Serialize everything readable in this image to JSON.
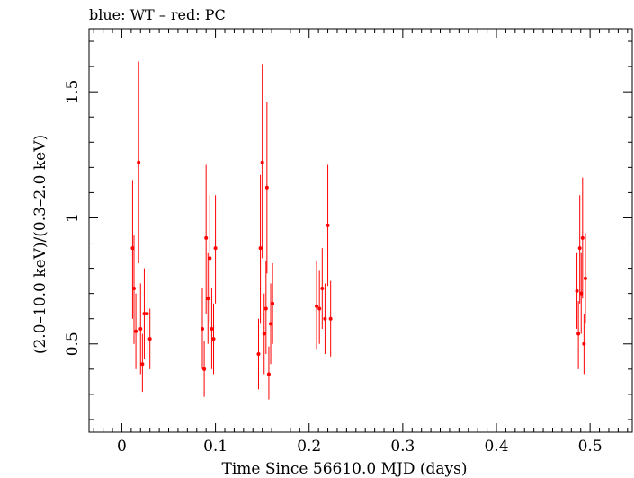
{
  "chart_data": {
    "type": "scatter",
    "title": "blue: WT – red: PC",
    "xlabel": "Time Since 56610.0 MJD (days)",
    "ylabel": "(2.0–10.0 keV)/(0.3–2.0 keV)",
    "xlim": [
      -0.035,
      0.545
    ],
    "ylim": [
      0.15,
      1.75
    ],
    "xticks": [
      0,
      0.1,
      0.2,
      0.3,
      0.4,
      0.5
    ],
    "xtick_labels": [
      "0",
      "0.1",
      "0.2",
      "0.3",
      "0.4",
      "0.5"
    ],
    "yticks": [
      0.5,
      1.0,
      1.5
    ],
    "ytick_labels": [
      "0.5",
      "1",
      "1.5"
    ],
    "series": [
      {
        "name": "PC",
        "color": "#ff0000",
        "points": [
          {
            "x": 0.0115,
            "y": 0.88,
            "lo": 0.6,
            "hi": 1.15
          },
          {
            "x": 0.013,
            "y": 0.72,
            "lo": 0.5,
            "hi": 0.93
          },
          {
            "x": 0.015,
            "y": 0.55,
            "lo": 0.4,
            "hi": 0.7
          },
          {
            "x": 0.018,
            "y": 1.22,
            "lo": 0.82,
            "hi": 1.62
          },
          {
            "x": 0.02,
            "y": 0.56,
            "lo": 0.38,
            "hi": 0.74
          },
          {
            "x": 0.022,
            "y": 0.42,
            "lo": 0.31,
            "hi": 0.54
          },
          {
            "x": 0.024,
            "y": 0.62,
            "lo": 0.44,
            "hi": 0.8
          },
          {
            "x": 0.027,
            "y": 0.62,
            "lo": 0.46,
            "hi": 0.78
          },
          {
            "x": 0.03,
            "y": 0.52,
            "lo": 0.4,
            "hi": 0.64
          },
          {
            "x": 0.086,
            "y": 0.56,
            "lo": 0.4,
            "hi": 0.72
          },
          {
            "x": 0.088,
            "y": 0.4,
            "lo": 0.29,
            "hi": 0.51
          },
          {
            "x": 0.09,
            "y": 0.92,
            "lo": 0.62,
            "hi": 1.21
          },
          {
            "x": 0.092,
            "y": 0.68,
            "lo": 0.5,
            "hi": 0.86
          },
          {
            "x": 0.094,
            "y": 0.84,
            "lo": 0.58,
            "hi": 1.09
          },
          {
            "x": 0.096,
            "y": 0.56,
            "lo": 0.4,
            "hi": 0.72
          },
          {
            "x": 0.098,
            "y": 0.52,
            "lo": 0.38,
            "hi": 0.66
          },
          {
            "x": 0.1,
            "y": 0.88,
            "lo": 0.66,
            "hi": 1.09
          },
          {
            "x": 0.146,
            "y": 0.46,
            "lo": 0.32,
            "hi": 0.6
          },
          {
            "x": 0.148,
            "y": 0.88,
            "lo": 0.58,
            "hi": 1.17
          },
          {
            "x": 0.15,
            "y": 1.22,
            "lo": 0.84,
            "hi": 1.61
          },
          {
            "x": 0.152,
            "y": 0.54,
            "lo": 0.38,
            "hi": 0.7
          },
          {
            "x": 0.154,
            "y": 0.64,
            "lo": 0.46,
            "hi": 0.83
          },
          {
            "x": 0.155,
            "y": 1.12,
            "lo": 0.78,
            "hi": 1.46
          },
          {
            "x": 0.157,
            "y": 0.38,
            "lo": 0.28,
            "hi": 0.49
          },
          {
            "x": 0.159,
            "y": 0.58,
            "lo": 0.42,
            "hi": 0.74
          },
          {
            "x": 0.161,
            "y": 0.66,
            "lo": 0.5,
            "hi": 0.82
          },
          {
            "x": 0.208,
            "y": 0.65,
            "lo": 0.48,
            "hi": 0.83
          },
          {
            "x": 0.211,
            "y": 0.64,
            "lo": 0.5,
            "hi": 0.79
          },
          {
            "x": 0.214,
            "y": 0.72,
            "lo": 0.56,
            "hi": 0.88
          },
          {
            "x": 0.217,
            "y": 0.6,
            "lo": 0.46,
            "hi": 0.74
          },
          {
            "x": 0.22,
            "y": 0.97,
            "lo": 0.73,
            "hi": 1.21
          },
          {
            "x": 0.223,
            "y": 0.6,
            "lo": 0.45,
            "hi": 0.75
          },
          {
            "x": 0.486,
            "y": 0.71,
            "lo": 0.56,
            "hi": 0.86
          },
          {
            "x": 0.4875,
            "y": 0.54,
            "lo": 0.4,
            "hi": 0.67
          },
          {
            "x": 0.489,
            "y": 0.88,
            "lo": 0.66,
            "hi": 1.09
          },
          {
            "x": 0.4905,
            "y": 0.7,
            "lo": 0.54,
            "hi": 0.86
          },
          {
            "x": 0.492,
            "y": 0.92,
            "lo": 0.68,
            "hi": 1.16
          },
          {
            "x": 0.4935,
            "y": 0.5,
            "lo": 0.38,
            "hi": 0.62
          },
          {
            "x": 0.495,
            "y": 0.76,
            "lo": 0.58,
            "hi": 0.94
          }
        ]
      }
    ]
  }
}
